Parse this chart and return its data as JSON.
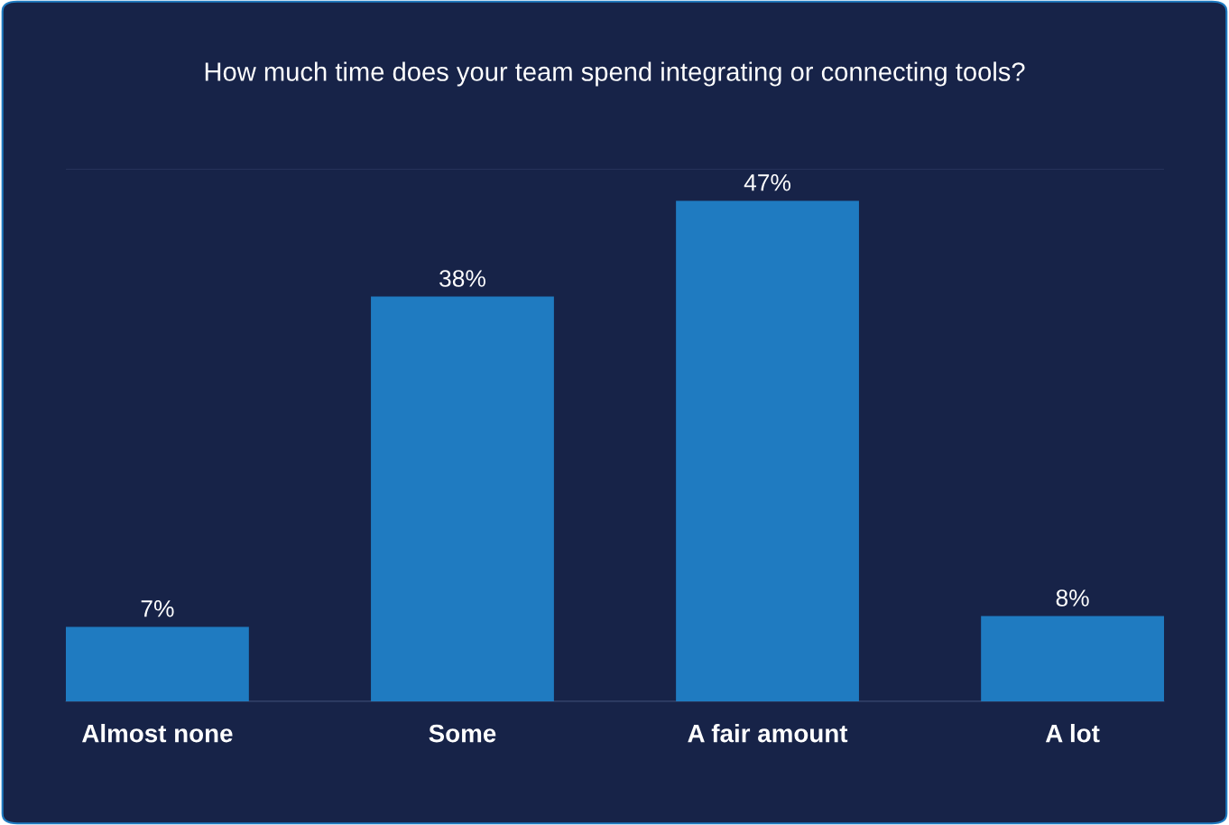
{
  "chart_data": {
    "type": "bar",
    "title": "How much time does your team spend integrating or connecting tools?",
    "categories": [
      "Almost none",
      "Some",
      "A fair amount",
      "A lot"
    ],
    "values": [
      7,
      38,
      47,
      8
    ],
    "color": "#1f7bc1",
    "value_labels": [
      "7%",
      "38%",
      "47%",
      "8%"
    ],
    "ylim": [
      0,
      50
    ],
    "yticks": [
      {
        "value": 0,
        "label": null
      },
      {
        "value": 50,
        "label": null
      }
    ],
    "grid": "y",
    "tick_labels": "x"
  }
}
